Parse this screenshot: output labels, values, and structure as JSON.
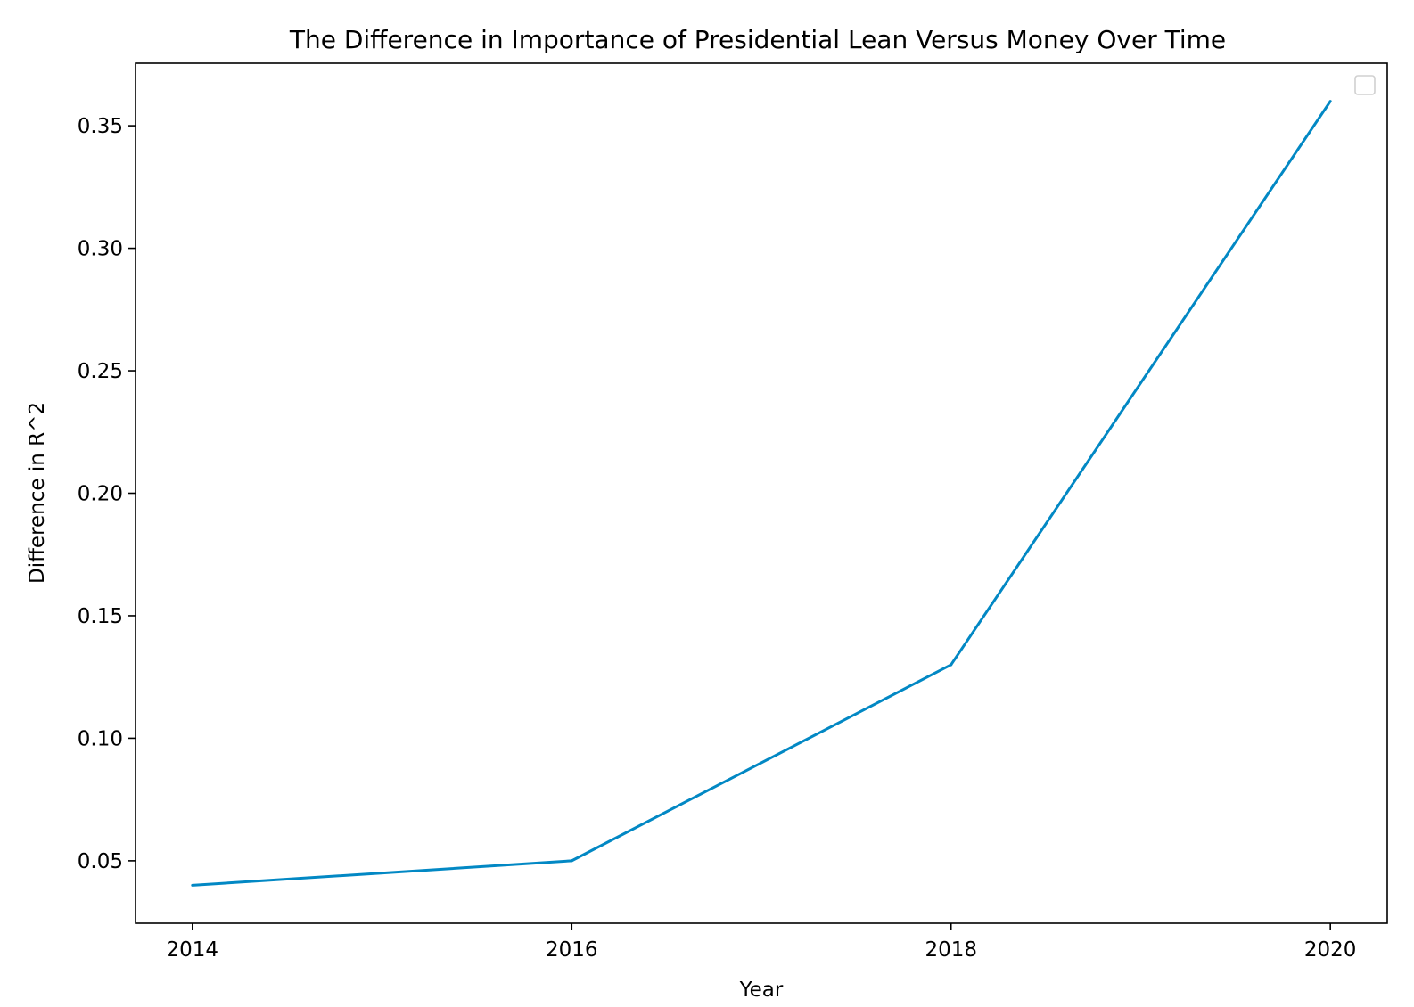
{
  "chart_data": {
    "type": "line",
    "title": "The Difference in Importance of Presidential Lean Versus Money Over Time",
    "xlabel": "Year",
    "ylabel": "Difference in R^2",
    "x": [
      2014,
      2016,
      2018,
      2020
    ],
    "series": [
      {
        "values": [
          0.04,
          0.05,
          0.13,
          0.36
        ]
      }
    ],
    "xticks": [
      "2014",
      "2016",
      "2018",
      "2020"
    ],
    "yticks": [
      "0.05",
      "0.10",
      "0.15",
      "0.20",
      "0.25",
      "0.30",
      "0.35"
    ],
    "xlim": [
      2013.7,
      2020.3
    ],
    "ylim": [
      0.0245,
      0.3755
    ],
    "grid": false,
    "legend": "upper right, empty",
    "colors": {
      "line": "#0288c4",
      "axes": "#000000",
      "legend_border": "#d0d0d0"
    }
  }
}
